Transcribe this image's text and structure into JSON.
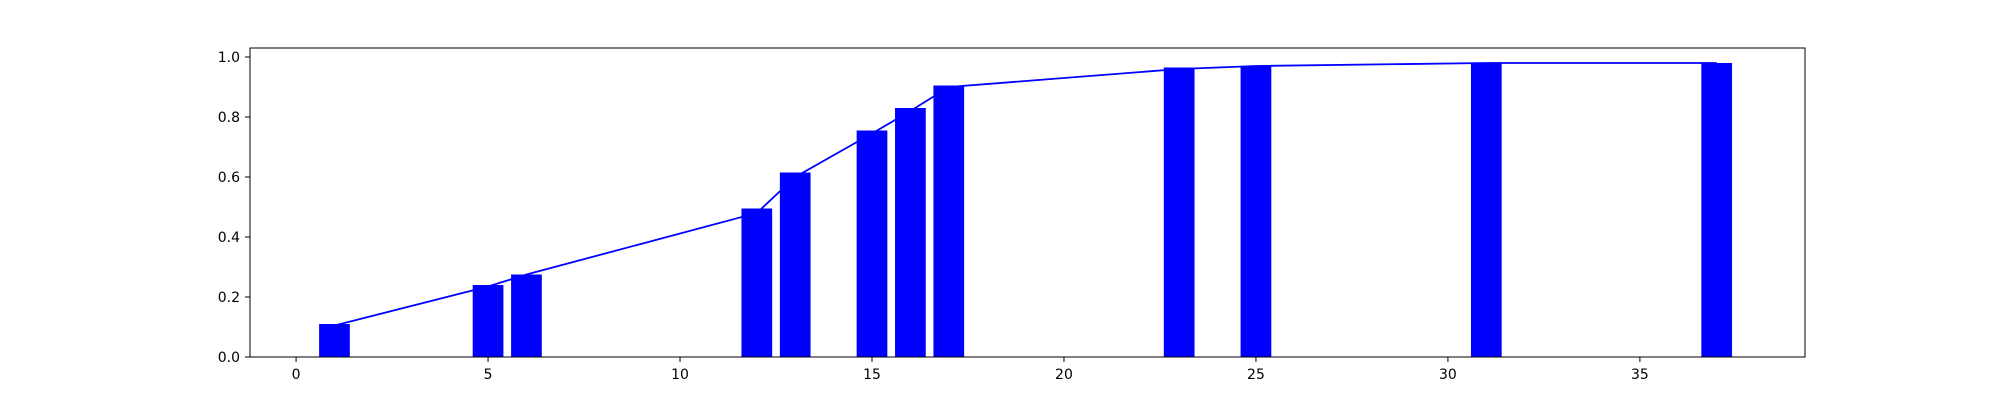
{
  "chart_data": {
    "type": "bar",
    "title": "",
    "xlabel": "",
    "ylabel": "",
    "x": [
      1,
      5,
      6,
      12,
      13,
      15,
      16,
      17,
      23,
      25,
      31,
      37
    ],
    "bars": [
      0.11,
      0.24,
      0.275,
      0.495,
      0.615,
      0.755,
      0.83,
      0.905,
      0.965,
      0.97,
      0.98,
      0.98
    ],
    "line": [
      0.105,
      0.235,
      0.275,
      0.48,
      0.6,
      0.745,
      0.82,
      0.9,
      0.96,
      0.97,
      0.98,
      0.98
    ],
    "bar_width": 0.8,
    "xlim": [
      -1.2,
      39.3
    ],
    "ylim": [
      0,
      1.03
    ],
    "xticks": [
      0,
      5,
      10,
      15,
      20,
      25,
      30,
      35
    ],
    "yticks": [
      0.0,
      0.2,
      0.4,
      0.6,
      0.8,
      1.0
    ],
    "xtick_labels": [
      "0",
      "5",
      "10",
      "15",
      "20",
      "25",
      "30",
      "35"
    ],
    "ytick_labels": [
      "0.0",
      "0.2",
      "0.4",
      "0.6",
      "0.8",
      "1.0"
    ],
    "color": "#0000ff",
    "grid": false,
    "legend": "none"
  }
}
